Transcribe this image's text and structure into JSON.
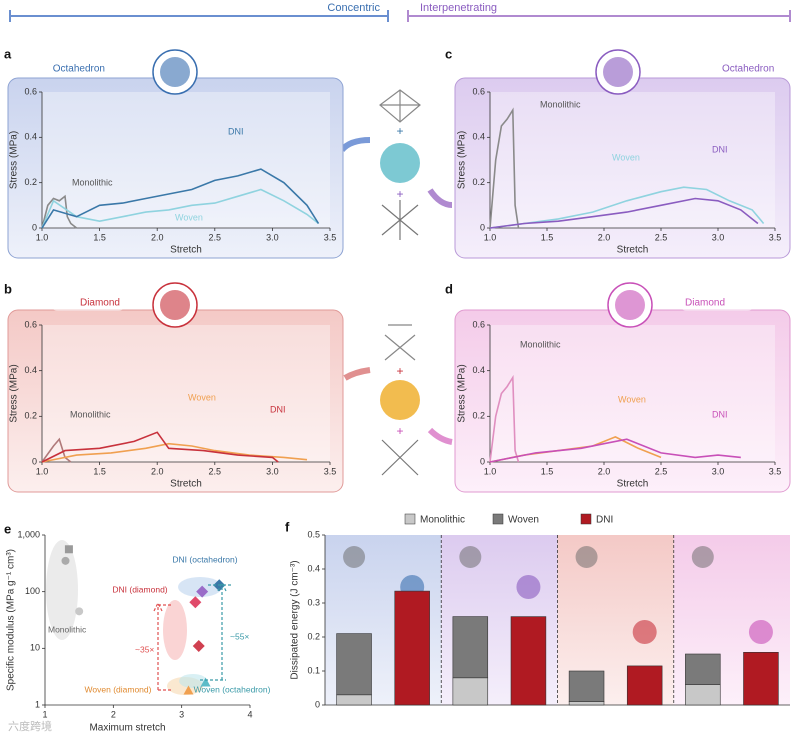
{
  "header": {
    "left": "Concentric",
    "right": "Interpenetrating"
  },
  "panel_labels": [
    "a",
    "b",
    "c",
    "d",
    "e",
    "f"
  ],
  "watermark": "六度跨境",
  "chart_data": [
    {
      "type": "line",
      "title": "Octahedron",
      "xlabel": "Stretch",
      "ylabel": "Stress (MPa)",
      "xlim": [
        1.0,
        3.5
      ],
      "xticks": [
        {
          "value": 1,
          "label": "1.0"
        },
        1.5,
        {
          "value": 2,
          "label": "2.0"
        },
        2.5,
        {
          "value": 3,
          "label": "3.0"
        },
        3.5
      ],
      "ylim": [
        0,
        0.6
      ],
      "yticks": [
        0,
        0.2,
        0.4,
        0.6
      ],
      "series": [
        {
          "name": "Monolithic",
          "color": "#8a8a8a",
          "x": [
            1.0,
            1.05,
            1.1,
            1.15,
            1.2,
            1.22,
            1.25,
            1.3
          ],
          "values": [
            0,
            0.1,
            0.13,
            0.12,
            0.14,
            0.05,
            0.02,
            0
          ]
        },
        {
          "name": "Woven",
          "color": "#8fd3df",
          "x": [
            1.0,
            1.1,
            1.3,
            1.5,
            1.7,
            1.9,
            2.1,
            2.3,
            2.5,
            2.7,
            2.9,
            3.1,
            3.3,
            3.4
          ],
          "values": [
            0,
            0.12,
            0.05,
            0.03,
            0.05,
            0.07,
            0.08,
            0.1,
            0.11,
            0.14,
            0.17,
            0.12,
            0.06,
            0.02
          ]
        },
        {
          "name": "DNI",
          "color": "#3a78a8",
          "x": [
            1.0,
            1.1,
            1.3,
            1.5,
            1.7,
            1.9,
            2.1,
            2.3,
            2.5,
            2.7,
            2.9,
            3.1,
            3.3,
            3.4
          ],
          "values": [
            0,
            0.08,
            0.05,
            0.1,
            0.11,
            0.13,
            0.15,
            0.17,
            0.21,
            0.23,
            0.26,
            0.2,
            0.1,
            0.02
          ]
        }
      ]
    },
    {
      "type": "line",
      "title": "Diamond",
      "xlabel": "Stretch",
      "ylabel": "Stress (MPa)",
      "xlim": [
        1.0,
        3.5
      ],
      "xticks": [
        {
          "value": 1,
          "label": "1.0"
        },
        1.5,
        {
          "value": 2,
          "label": "2.0"
        },
        2.5,
        {
          "value": 3,
          "label": "3.0"
        },
        3.5
      ],
      "ylim": [
        0,
        0.6
      ],
      "yticks": [
        0,
        0.2,
        0.4,
        0.6
      ],
      "series": [
        {
          "name": "Monolithic",
          "color": "#b07a7a",
          "x": [
            1.0,
            1.1,
            1.15,
            1.2,
            1.25
          ],
          "values": [
            0,
            0.07,
            0.1,
            0.02,
            0
          ]
        },
        {
          "name": "Woven",
          "color": "#f0a050",
          "x": [
            1.0,
            1.3,
            1.6,
            1.9,
            2.1,
            2.3,
            2.5,
            2.8,
            3.1,
            3.3
          ],
          "values": [
            0,
            0.03,
            0.04,
            0.06,
            0.08,
            0.07,
            0.05,
            0.03,
            0.02,
            0.01
          ]
        },
        {
          "name": "DNI",
          "color": "#c8323c",
          "x": [
            1.0,
            1.2,
            1.5,
            1.8,
            2.0,
            2.1,
            2.4,
            2.7,
            3.0,
            3.05
          ],
          "values": [
            0,
            0.05,
            0.06,
            0.09,
            0.13,
            0.06,
            0.05,
            0.03,
            0.02,
            0
          ]
        }
      ]
    },
    {
      "type": "line",
      "title": "Octahedron",
      "xlabel": "Stretch",
      "ylabel": "Stress (MPa)",
      "xlim": [
        1.0,
        3.5
      ],
      "xticks": [
        {
          "value": 1,
          "label": "1.0"
        },
        1.5,
        {
          "value": 2,
          "label": "2.0"
        },
        2.5,
        {
          "value": 3,
          "label": "3.0"
        },
        3.5
      ],
      "ylim": [
        0,
        0.6
      ],
      "yticks": [
        0,
        0.2,
        0.4,
        0.6
      ],
      "series": [
        {
          "name": "Monolithic",
          "color": "#8a8a8a",
          "x": [
            1.0,
            1.05,
            1.1,
            1.15,
            1.2,
            1.22,
            1.25
          ],
          "values": [
            0,
            0.3,
            0.45,
            0.48,
            0.52,
            0.1,
            0
          ]
        },
        {
          "name": "Woven",
          "color": "#8fd3df",
          "x": [
            1.0,
            1.3,
            1.6,
            1.9,
            2.2,
            2.5,
            2.7,
            2.9,
            3.1,
            3.3,
            3.4
          ],
          "values": [
            0,
            0.02,
            0.04,
            0.07,
            0.12,
            0.16,
            0.18,
            0.17,
            0.12,
            0.08,
            0.02
          ]
        },
        {
          "name": "DNI",
          "color": "#8a5cc0",
          "x": [
            1.0,
            1.3,
            1.6,
            1.9,
            2.2,
            2.5,
            2.8,
            3.0,
            3.2,
            3.35
          ],
          "values": [
            0,
            0.02,
            0.03,
            0.05,
            0.07,
            0.1,
            0.13,
            0.12,
            0.08,
            0.02
          ]
        }
      ]
    },
    {
      "type": "line",
      "title": "Diamond",
      "xlabel": "Stretch",
      "ylabel": "Stress (MPa)",
      "xlim": [
        1.0,
        3.5
      ],
      "xticks": [
        {
          "value": 1,
          "label": "1.0"
        },
        1.5,
        {
          "value": 2,
          "label": "2.0"
        },
        2.5,
        {
          "value": 3,
          "label": "3.0"
        },
        3.5
      ],
      "ylim": [
        0,
        0.6
      ],
      "yticks": [
        0,
        0.2,
        0.4,
        0.6
      ],
      "series": [
        {
          "name": "Monolithic",
          "color": "#e08fc0",
          "x": [
            1.0,
            1.05,
            1.1,
            1.15,
            1.2,
            1.22,
            1.25
          ],
          "values": [
            0,
            0.2,
            0.3,
            0.33,
            0.37,
            0.05,
            0
          ]
        },
        {
          "name": "Woven",
          "color": "#f0a050",
          "x": [
            1.0,
            1.3,
            1.6,
            1.9,
            2.1,
            2.3,
            2.5
          ],
          "values": [
            0,
            0.03,
            0.05,
            0.07,
            0.11,
            0.06,
            0.02
          ]
        },
        {
          "name": "DNI",
          "color": "#c850b8",
          "x": [
            1.0,
            1.4,
            1.8,
            2.0,
            2.2,
            2.5,
            2.8,
            3.0,
            3.2
          ],
          "values": [
            0,
            0.04,
            0.06,
            0.08,
            0.1,
            0.04,
            0.02,
            0.03,
            0.02
          ]
        }
      ]
    },
    {
      "type": "scatter",
      "xlabel": "Maximum stretch",
      "ylabel": "Specific modulus (MPa g⁻¹ cm³)",
      "xlim": [
        1,
        4
      ],
      "xticks": [
        1,
        2,
        3,
        4
      ],
      "ylim": [
        1,
        1000
      ],
      "log_y": true,
      "yticks": [
        1,
        10,
        100,
        {
          "value": 1000,
          "label": "1,000"
        }
      ],
      "annotations": [
        "~35×",
        "~55×"
      ],
      "series": [
        {
          "name": "Monolithic",
          "colors": [
            "#9a9a9a",
            "#aaaaaa",
            "#c8c8c8"
          ],
          "markers": [
            "square",
            "circle",
            "circle"
          ],
          "x": [
            1.35,
            1.3,
            1.5
          ],
          "values": [
            560,
            350,
            45
          ]
        },
        {
          "name": "DNI (octahedron)",
          "colors": [
            "#3a78a8",
            "#9a6cc8"
          ],
          "markers": [
            "diamond",
            "diamond"
          ],
          "x": [
            3.55,
            3.3
          ],
          "values": [
            130,
            100
          ]
        },
        {
          "name": "DNI (diamond)",
          "colors": [
            "#e04a6a",
            "#d04050"
          ],
          "markers": [
            "diamond",
            "diamond"
          ],
          "x": [
            3.2,
            3.25
          ],
          "values": [
            65,
            11
          ]
        },
        {
          "name": "Woven (diamond)",
          "colors": [
            "#f0a050"
          ],
          "markers": [
            "triangle"
          ],
          "x": [
            3.1
          ],
          "values": [
            1.8
          ]
        },
        {
          "name": "Woven (octahedron)",
          "colors": [
            "#5cbcc8"
          ],
          "markers": [
            "triangle"
          ],
          "x": [
            3.35
          ],
          "values": [
            2.5
          ]
        }
      ]
    },
    {
      "type": "bar",
      "stacked": true,
      "ylabel": "Dissipated energy (J cm⁻³)",
      "categories": [
        null,
        null,
        null,
        null,
        null,
        null,
        null,
        null
      ],
      "ylim": [
        0,
        0.5
      ],
      "yticks": [
        0,
        0.1,
        0.2,
        0.3,
        0.4,
        0.5
      ],
      "series": [
        {
          "name": "Monolithic",
          "color": "#c8c8c8",
          "values": [
            0.03,
            null,
            0.08,
            null,
            0.01,
            null,
            0.06,
            null
          ]
        },
        {
          "name": "Woven",
          "color": "#7a7a7a",
          "values": [
            0.18,
            null,
            0.18,
            null,
            0.09,
            null,
            0.09,
            null
          ]
        },
        {
          "name": "DNI",
          "color": "#b01a22",
          "values": [
            null,
            0.335,
            null,
            0.26,
            null,
            0.115,
            null,
            0.155
          ]
        }
      ]
    }
  ]
}
